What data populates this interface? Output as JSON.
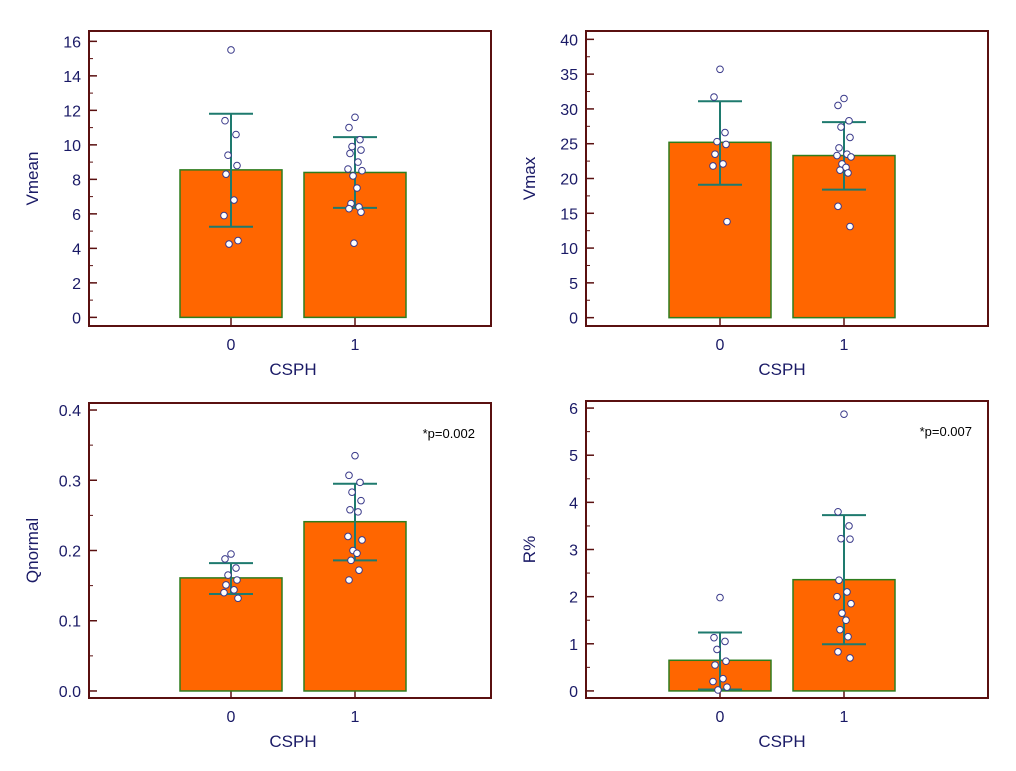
{
  "colors": {
    "frame": "#5a1010",
    "bar_fill": "#ff6600",
    "bar_edge": "#2e7d1e",
    "errorbar": "#1e7a6e",
    "text": "#1a1a66",
    "point_edge": "#3a3a8a"
  },
  "chart_data": [
    {
      "id": "vmean",
      "type": "bar",
      "title": "",
      "xlabel": "CSPH",
      "ylabel": "Vmean",
      "categories": [
        "0",
        "1"
      ],
      "ylim": [
        -0.5,
        16.6
      ],
      "yticks": [
        0,
        2,
        4,
        6,
        8,
        10,
        12,
        14,
        16
      ],
      "ytick_labels": [
        "0",
        "2",
        "4",
        "6",
        "8",
        "10",
        "12",
        "14",
        "16"
      ],
      "minor_step": 1,
      "values": [
        8.55,
        8.4
      ],
      "error_low": [
        5.25,
        6.35
      ],
      "error_high": [
        11.8,
        10.45
      ],
      "points": [
        [
          15.5,
          11.4,
          10.6,
          9.4,
          8.8,
          8.3,
          6.8,
          5.9,
          4.45,
          4.25
        ],
        [
          11.6,
          11.0,
          10.3,
          9.9,
          9.7,
          9.5,
          9.0,
          8.6,
          8.5,
          8.2,
          7.5,
          6.6,
          6.4,
          6.3,
          6.1,
          4.3
        ]
      ],
      "annotation": ""
    },
    {
      "id": "vmax",
      "type": "bar",
      "title": "",
      "xlabel": "CSPH",
      "ylabel": "Vmax",
      "categories": [
        "0",
        "1"
      ],
      "ylim": [
        -1.2,
        41.2
      ],
      "yticks": [
        0,
        5,
        10,
        15,
        20,
        25,
        30,
        35,
        40
      ],
      "ytick_labels": [
        "0",
        "5",
        "10",
        "15",
        "20",
        "25",
        "30",
        "35",
        "40"
      ],
      "minor_step": 2.5,
      "values": [
        25.2,
        23.3
      ],
      "error_low": [
        19.1,
        18.4
      ],
      "error_high": [
        31.1,
        28.1
      ],
      "points": [
        [
          35.7,
          31.7,
          26.6,
          25.3,
          24.9,
          23.5,
          22.1,
          21.8,
          13.8
        ],
        [
          31.5,
          30.5,
          28.3,
          27.4,
          25.9,
          24.4,
          23.5,
          23.3,
          23.1,
          22.1,
          21.6,
          21.2,
          20.8,
          16.0,
          13.1
        ]
      ],
      "annotation": ""
    },
    {
      "id": "qnormal",
      "type": "bar",
      "title": "",
      "xlabel": "CSPH",
      "ylabel": "Qnormal",
      "categories": [
        "0",
        "1"
      ],
      "ylim": [
        -0.01,
        0.41
      ],
      "yticks": [
        0,
        0.1,
        0.2,
        0.3,
        0.4
      ],
      "ytick_labels": [
        "0.0",
        "0.1",
        "0.2",
        "0.3",
        "0.4"
      ],
      "minor_step": 0.05,
      "values": [
        0.161,
        0.241
      ],
      "error_low": [
        0.138,
        0.186
      ],
      "error_high": [
        0.182,
        0.295
      ],
      "points": [
        [
          0.195,
          0.188,
          0.175,
          0.165,
          0.158,
          0.151,
          0.144,
          0.14,
          0.132
        ],
        [
          0.335,
          0.307,
          0.297,
          0.283,
          0.271,
          0.258,
          0.255,
          0.22,
          0.215,
          0.2,
          0.196,
          0.186,
          0.172,
          0.158
        ]
      ],
      "annotation": "*p=0.002"
    },
    {
      "id": "rpct",
      "type": "bar",
      "title": "",
      "xlabel": "CSPH",
      "ylabel": "R%",
      "categories": [
        "0",
        "1"
      ],
      "ylim": [
        -0.15,
        6.15
      ],
      "yticks": [
        0,
        1,
        2,
        3,
        4,
        5,
        6
      ],
      "ytick_labels": [
        "0",
        "1",
        "2",
        "3",
        "4",
        "5",
        "6"
      ],
      "minor_step": 0.5,
      "values": [
        0.65,
        2.36
      ],
      "error_low": [
        0.03,
        0.99
      ],
      "error_high": [
        1.24,
        3.73
      ],
      "points": [
        [
          1.98,
          1.13,
          1.05,
          0.88,
          0.63,
          0.55,
          0.26,
          0.2,
          0.08,
          0.02
        ],
        [
          5.87,
          3.8,
          3.5,
          3.23,
          3.22,
          2.35,
          2.1,
          2.0,
          1.85,
          1.65,
          1.5,
          1.3,
          1.15,
          0.83,
          0.7
        ]
      ],
      "annotation": "*p=0.007"
    }
  ]
}
